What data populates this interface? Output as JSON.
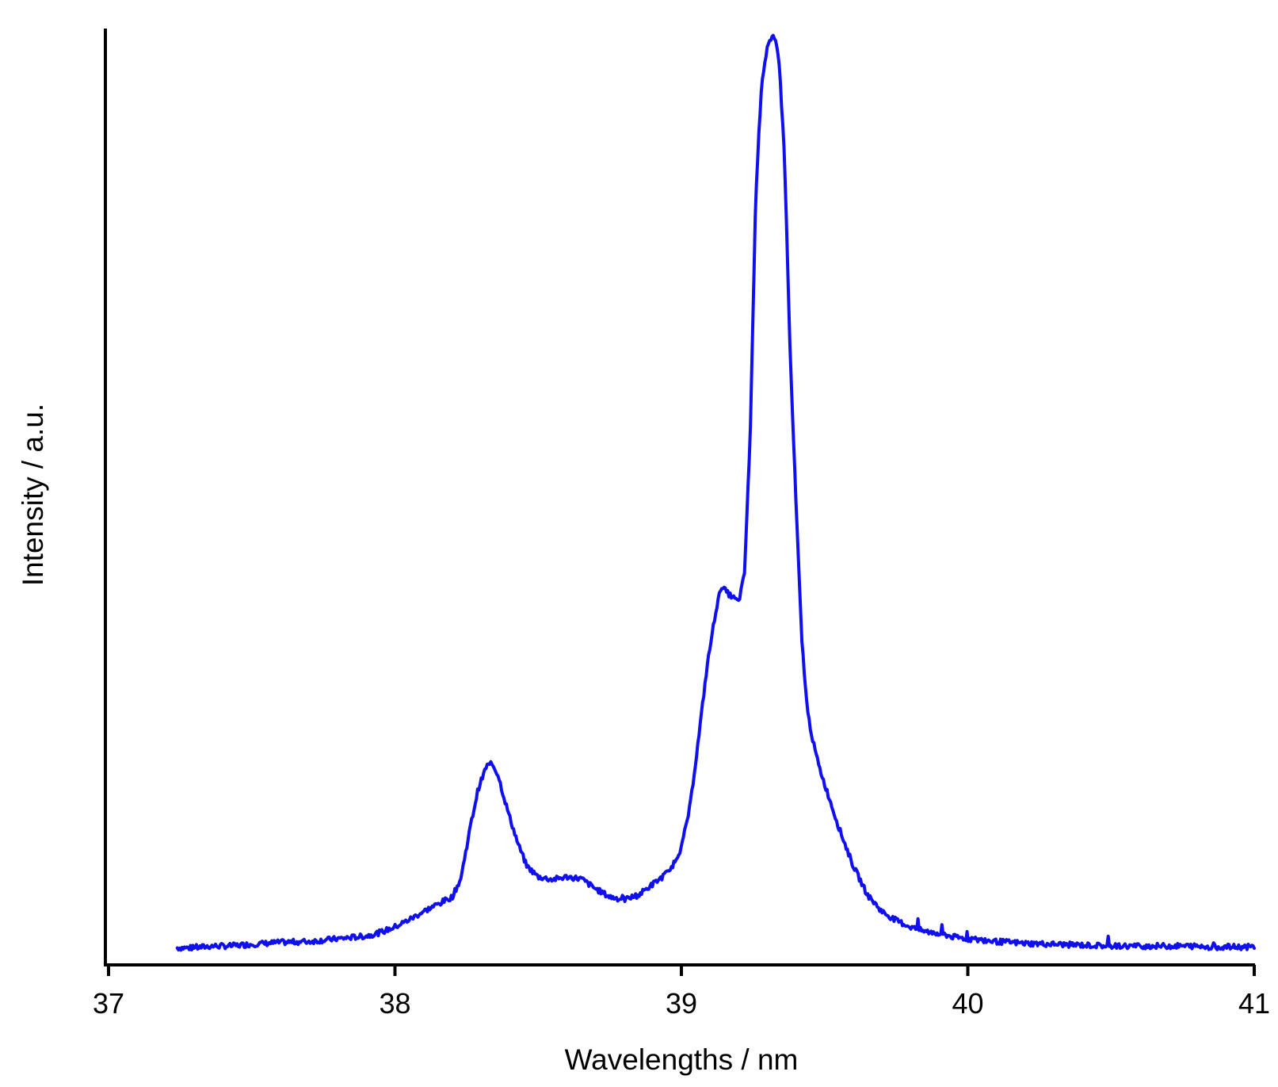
{
  "chart_data": {
    "type": "line",
    "title": "",
    "xlabel": "Wavelengths / nm",
    "ylabel": "Intensity / a.u.",
    "xlim": [
      37,
      41
    ],
    "ylim": [
      0,
      1.02
    ],
    "x_ticks": [
      "37",
      "38",
      "39",
      "40",
      "41"
    ],
    "y_ticks": [],
    "grid": false,
    "legend": "none",
    "series": [
      {
        "color": "#1010ee",
        "x": [
          37.24,
          37.3,
          37.36,
          37.42,
          37.5,
          37.6,
          37.7,
          37.8,
          37.9,
          37.95,
          38.0,
          38.05,
          38.1,
          38.15,
          38.2,
          38.23,
          38.26,
          38.29,
          38.32,
          38.34,
          38.36,
          38.38,
          38.4,
          38.43,
          38.46,
          38.5,
          38.55,
          38.6,
          38.65,
          38.7,
          38.75,
          38.8,
          38.85,
          38.9,
          38.93,
          38.96,
          39.0,
          39.03,
          39.06,
          39.09,
          39.12,
          39.14,
          39.16,
          39.18,
          39.2,
          39.22,
          39.24,
          39.26,
          39.28,
          39.3,
          39.32,
          39.33,
          39.34,
          39.36,
          39.38,
          39.4,
          39.42,
          39.44,
          39.46,
          39.48,
          39.5,
          39.55,
          39.6,
          39.65,
          39.7,
          39.75,
          39.8,
          39.85,
          39.9,
          39.95,
          40.0,
          40.1,
          40.2,
          40.3,
          40.4,
          40.5,
          40.54,
          40.6,
          40.7,
          40.78,
          40.85,
          40.95,
          41.0
        ],
        "y": [
          0.01,
          0.01,
          0.012,
          0.012,
          0.014,
          0.016,
          0.017,
          0.02,
          0.023,
          0.027,
          0.033,
          0.041,
          0.05,
          0.058,
          0.066,
          0.086,
          0.138,
          0.184,
          0.21,
          0.212,
          0.2,
          0.176,
          0.154,
          0.124,
          0.1,
          0.088,
          0.085,
          0.088,
          0.086,
          0.075,
          0.066,
          0.063,
          0.068,
          0.08,
          0.087,
          0.095,
          0.12,
          0.165,
          0.24,
          0.32,
          0.38,
          0.408,
          0.4,
          0.395,
          0.39,
          0.42,
          0.57,
          0.84,
          0.96,
          1.0,
          1.01,
          1.005,
          0.99,
          0.88,
          0.66,
          0.5,
          0.35,
          0.27,
          0.236,
          0.21,
          0.19,
          0.142,
          0.1,
          0.068,
          0.05,
          0.04,
          0.033,
          0.028,
          0.026,
          0.022,
          0.02,
          0.017,
          0.015,
          0.014,
          0.013,
          0.012,
          0.012,
          0.012,
          0.012,
          0.012,
          0.011,
          0.011,
          0.011
        ]
      }
    ]
  }
}
